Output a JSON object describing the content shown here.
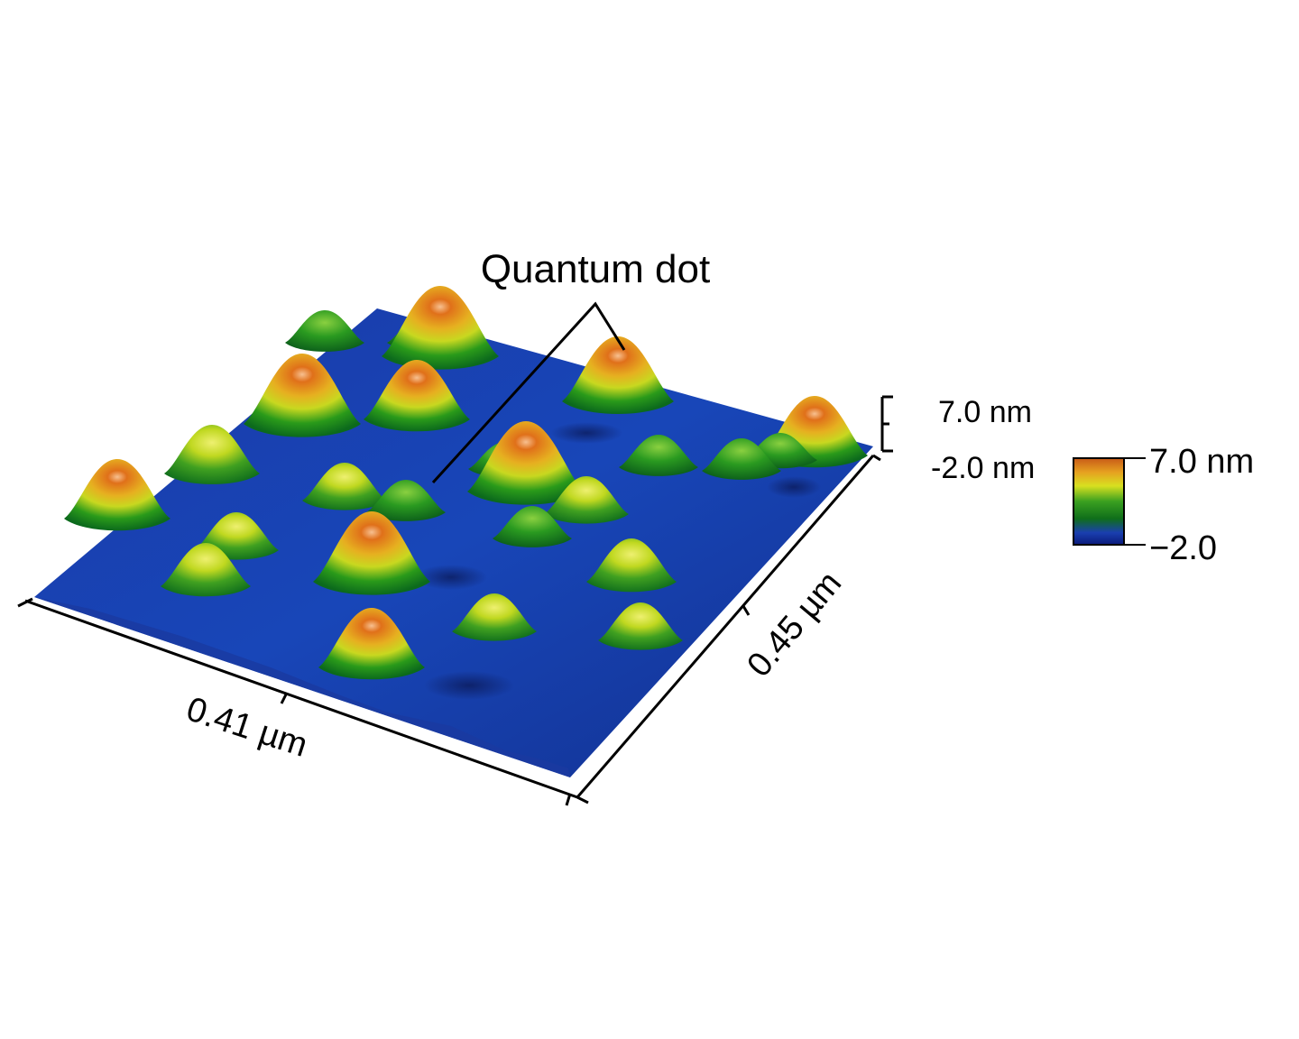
{
  "annotation": {
    "text": "Quantum dot"
  },
  "axes": {
    "x_label": "0.41 µm",
    "y_label": "0.45 µm",
    "z_max_label": "7.0 nm",
    "z_min_label": "-2.0 nm"
  },
  "colorbar": {
    "max_label": "7.0 nm",
    "min_label": "−2.0",
    "colors": [
      "#0a1a7a",
      "#1a3fb0",
      "#0f6e1a",
      "#3aa020",
      "#d8e020",
      "#e6a020",
      "#c85a18"
    ]
  },
  "surface": {
    "base_color": "#1840b0",
    "dot_heights_nm": [
      6.5,
      6.0,
      5.5,
      6.5,
      4.5,
      3.5,
      3.0,
      6.5,
      3.5,
      3.0,
      3.0,
      5.5,
      3.0,
      3.5,
      4.0,
      6.5,
      4.0,
      3.5,
      3.5,
      5.5,
      3.0,
      5.5,
      2.5,
      2.5,
      2.5
    ]
  }
}
